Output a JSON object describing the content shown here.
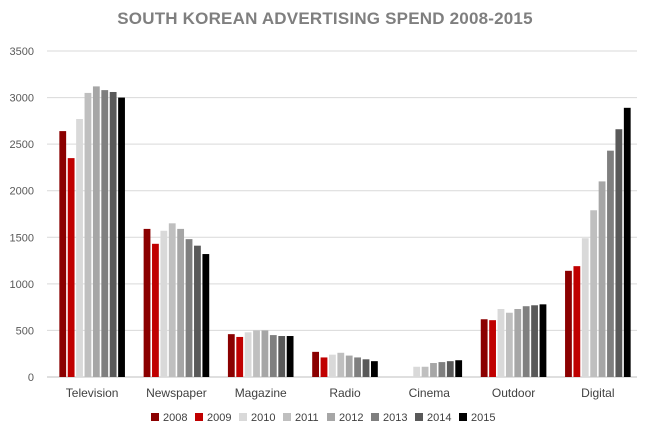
{
  "chart_data": {
    "type": "bar",
    "title": "SOUTH KOREAN ADVERTISING SPEND 2008-2015",
    "xlabel": "",
    "ylabel": "",
    "categories": [
      "Television",
      "Newspaper",
      "Magazine",
      "Radio",
      "Cinema",
      "Outdoor",
      "Digital"
    ],
    "ylim": [
      0,
      3500
    ],
    "yticks": [
      0,
      500,
      1000,
      1500,
      2000,
      2500,
      3000,
      3500
    ],
    "grid": true,
    "legend_position": "bottom",
    "series": [
      {
        "name": "2008",
        "color": "#8b0000",
        "values": [
          2640,
          1590,
          460,
          270,
          0,
          620,
          1140
        ]
      },
      {
        "name": "2009",
        "color": "#c00000",
        "values": [
          2350,
          1430,
          430,
          210,
          0,
          610,
          1190
        ]
      },
      {
        "name": "2010",
        "color": "#d9d9d9",
        "values": [
          2770,
          1570,
          480,
          240,
          110,
          730,
          1490
        ]
      },
      {
        "name": "2011",
        "color": "#bfbfbf",
        "values": [
          3050,
          1650,
          500,
          260,
          110,
          690,
          1790
        ]
      },
      {
        "name": "2012",
        "color": "#a6a6a6",
        "values": [
          3120,
          1590,
          500,
          230,
          150,
          730,
          2100
        ]
      },
      {
        "name": "2013",
        "color": "#7f7f7f",
        "values": [
          3080,
          1480,
          450,
          210,
          160,
          760,
          2430
        ]
      },
      {
        "name": "2014",
        "color": "#595959",
        "values": [
          3060,
          1410,
          440,
          190,
          170,
          770,
          2660
        ]
      },
      {
        "name": "2015",
        "color": "#000000",
        "values": [
          3000,
          1320,
          440,
          170,
          180,
          780,
          2890
        ]
      }
    ]
  }
}
